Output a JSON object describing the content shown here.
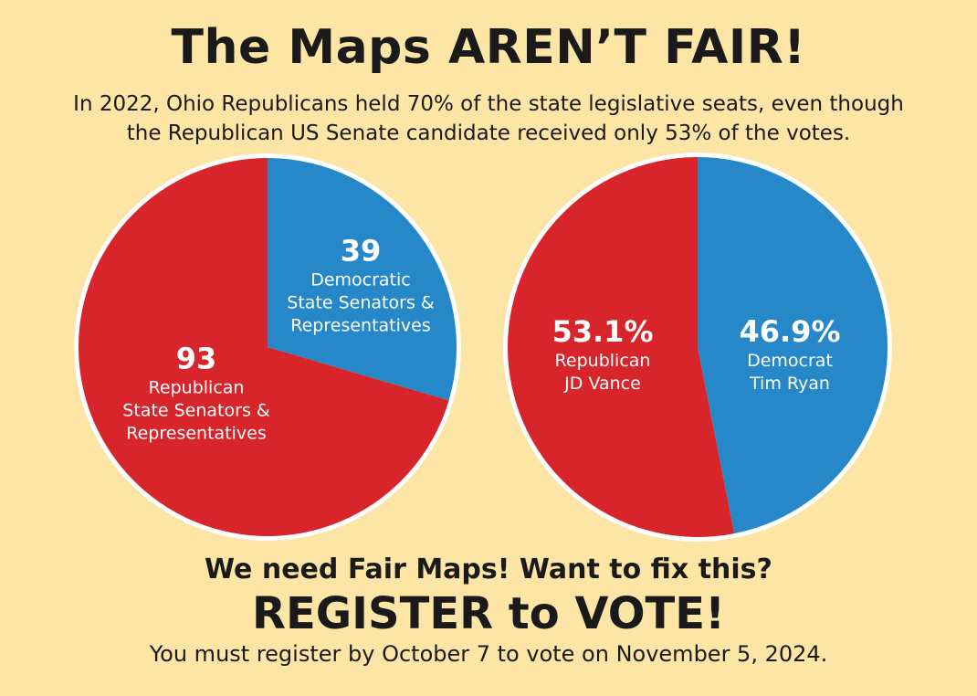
{
  "header": {
    "title": "The Maps AREN’T FAIR!",
    "subtitle": "In 2022, Ohio Republicans held 70% of the state legislative seats, even though\nthe Republican US Senate candidate received only 53% of the votes."
  },
  "chart_data": [
    {
      "type": "pie",
      "categories": [
        "Democratic\nState Senators &\nRepresentatives",
        "Republican\nState Senators &\nRepresentatives"
      ],
      "values": [
        39,
        93
      ],
      "colors": [
        "#2688c9",
        "#d7252b"
      ]
    },
    {
      "type": "pie",
      "categories": [
        "Democrat\nTim Ryan",
        "Republican\nJD Vance"
      ],
      "values": [
        46.9,
        53.1
      ],
      "value_labels": [
        "46.9%",
        "53.1%"
      ],
      "colors": [
        "#2688c9",
        "#d7252b"
      ]
    }
  ],
  "footer": {
    "question": "We need Fair Maps! Want to fix this?",
    "call": "REGISTER to VOTE!",
    "note": "You must register by October 7 to vote on November 5, 2024."
  }
}
